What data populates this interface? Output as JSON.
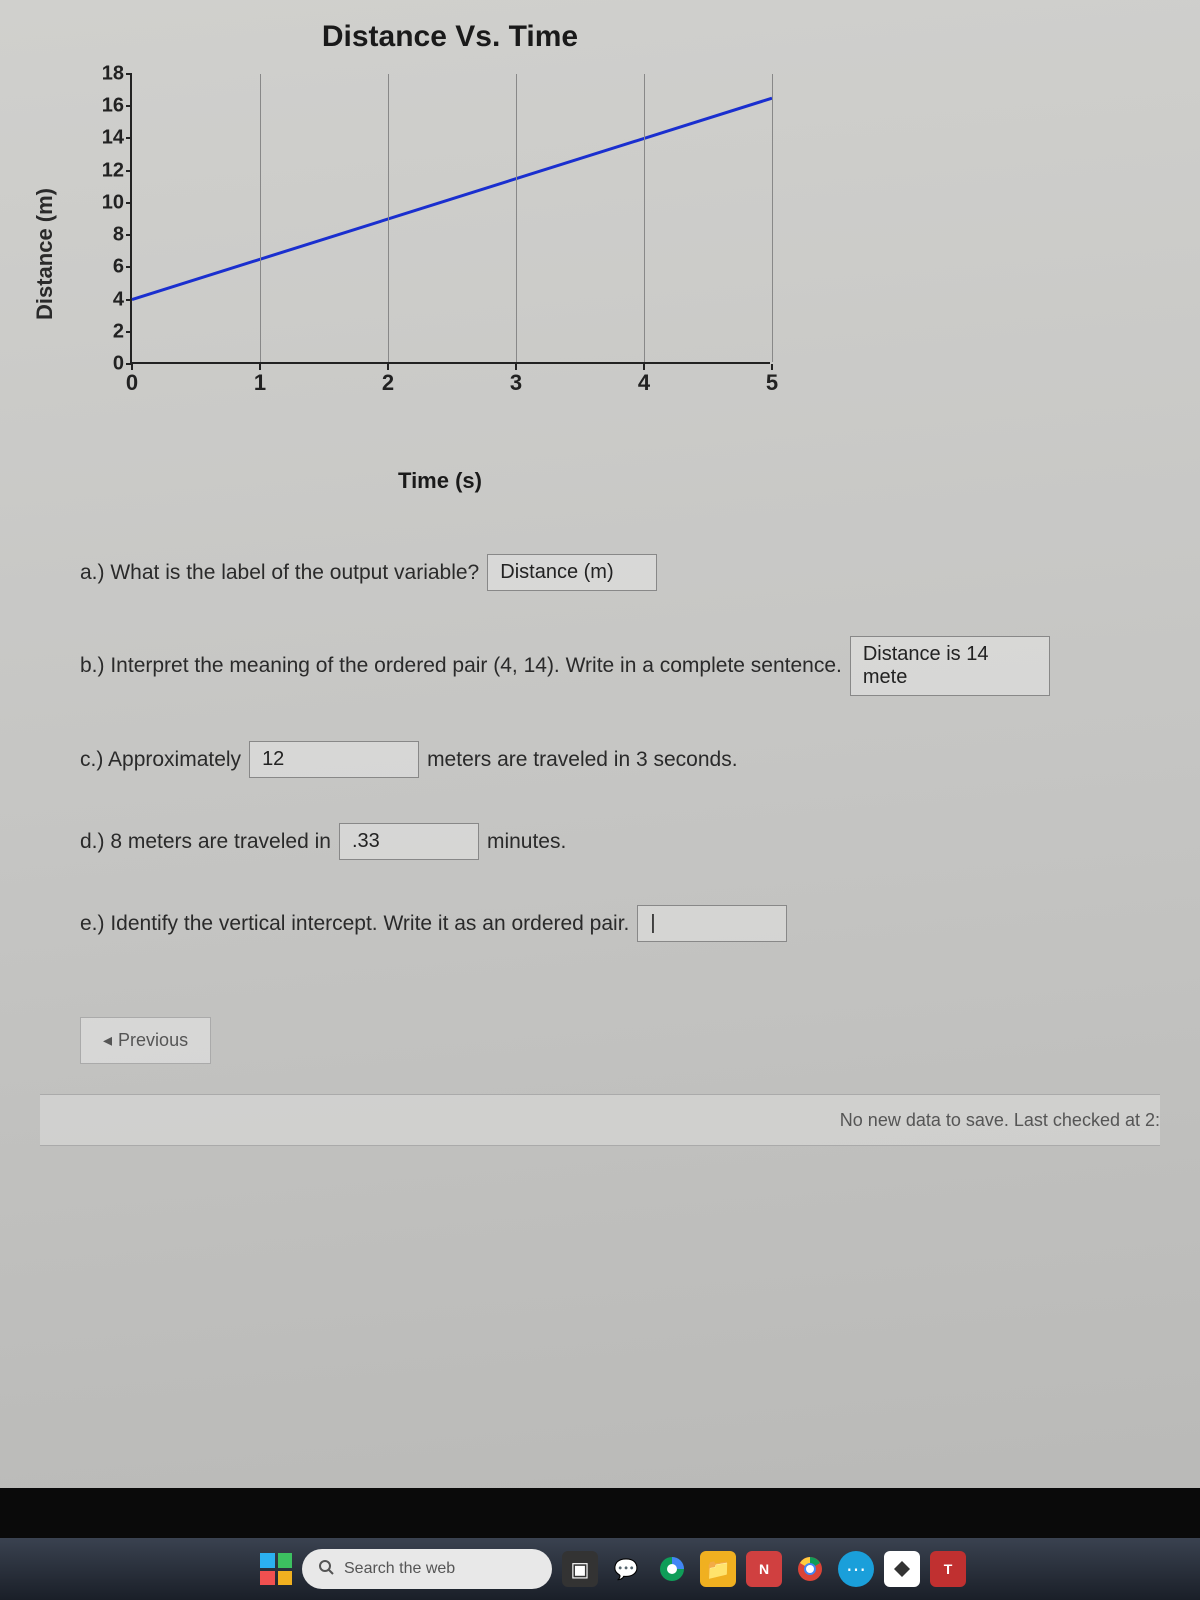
{
  "chart": {
    "title": "Distance Vs. Time",
    "type": "line",
    "x_label": "Time (s)",
    "y_label": "Distance (m)",
    "xlim": [
      0,
      5
    ],
    "ylim": [
      0,
      18
    ],
    "xticks": [
      0,
      1,
      2,
      3,
      4,
      5
    ],
    "yticks": [
      0,
      2,
      4,
      6,
      8,
      10,
      12,
      14,
      16,
      18
    ],
    "grid_v_at": [
      1,
      2,
      3,
      4,
      5
    ],
    "line_color": "#1a2fcf",
    "line_width": 3,
    "grid_color": "#888888",
    "axis_color": "#222222",
    "background": "transparent",
    "data_points": [
      {
        "x": 0,
        "y": 4
      },
      {
        "x": 5,
        "y": 16.5
      }
    ]
  },
  "questions": {
    "a": {
      "prompt": "a.) What is the label of the output variable?",
      "answer": "Distance (m)"
    },
    "b": {
      "prompt": "b.) Interpret the meaning of the ordered pair (4, 14). Write in a complete sentence.",
      "answer": "Distance is 14 mete"
    },
    "c": {
      "pre": "c.) Approximately",
      "answer": "12",
      "post": "meters are traveled in 3 seconds."
    },
    "d": {
      "pre": "d.) 8 meters are traveled in",
      "answer": ".33",
      "post": "minutes."
    },
    "e": {
      "prompt": "e.) Identify the vertical intercept. Write it as an ordered pair.",
      "answer": "|"
    }
  },
  "nav": {
    "previous": "Previous"
  },
  "status": {
    "save_text": "No new data to save. Last checked at 2:"
  },
  "taskbar": {
    "search_placeholder": "Search the web"
  }
}
